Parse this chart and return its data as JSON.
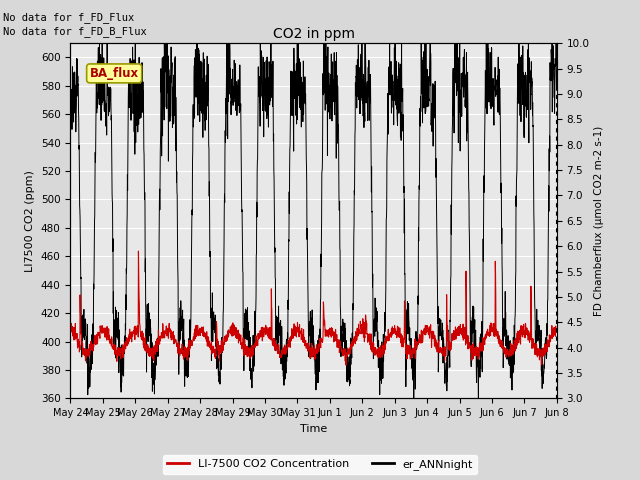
{
  "title": "CO2 in ppm",
  "xlabel": "Time",
  "ylabel_left": "LI7500 CO2 (ppm)",
  "ylabel_right": "FD Chamberflux (μmol CO2 m-2 s-1)",
  "left_ylim": [
    360,
    610
  ],
  "right_ylim": [
    3.0,
    10.0
  ],
  "left_yticks": [
    360,
    380,
    400,
    420,
    440,
    460,
    480,
    500,
    520,
    540,
    560,
    580,
    600
  ],
  "right_yticks": [
    3.0,
    3.5,
    4.0,
    4.5,
    5.0,
    5.5,
    6.0,
    6.5,
    7.0,
    7.5,
    8.0,
    8.5,
    9.0,
    9.5,
    10.0
  ],
  "xtick_labels": [
    "May 24",
    "May 25",
    "May 26",
    "May 27",
    "May 28",
    "May 29",
    "May 30",
    "May 31",
    "Jun 1",
    "Jun 2",
    "Jun 3",
    "Jun 4",
    "Jun 5",
    "Jun 6",
    "Jun 7",
    "Jun 8"
  ],
  "note1": "No data for f_FD_Flux",
  "note2": "No data for f_FD_B_Flux",
  "ba_flux_label": "BA_flux",
  "legend_red_label": "LI-7500 CO2 Concentration",
  "legend_black_label": "er_ANNnight",
  "fig_bg_color": "#d8d8d8",
  "plot_bg_color": "#e8e8e8",
  "red_color": "#cc0000",
  "black_color": "#000000",
  "ba_flux_box_color": "#ffff99",
  "ba_flux_text_color": "#aa0000",
  "grid_color": "#ffffff"
}
